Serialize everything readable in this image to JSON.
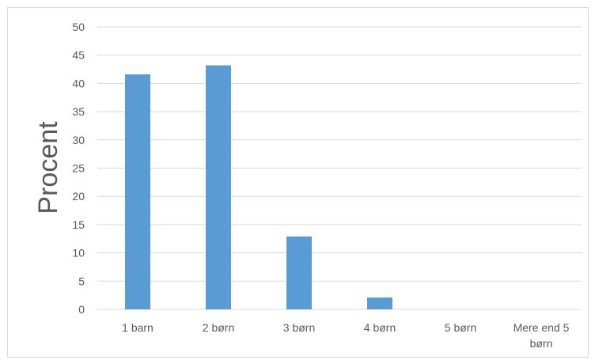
{
  "chart_data": {
    "type": "bar",
    "categories": [
      "1 barn",
      "2 børn",
      "3 børn",
      "4 børn",
      "5 børn",
      "Mere end 5 børn"
    ],
    "category_label_lines": [
      [
        "1 barn"
      ],
      [
        "2 børn"
      ],
      [
        "3 børn"
      ],
      [
        "4 børn"
      ],
      [
        "5 børn"
      ],
      [
        "Mere end 5",
        "børn"
      ]
    ],
    "values": [
      41.6,
      43.2,
      12.9,
      2.1,
      0,
      0
    ],
    "title": "",
    "xlabel": "",
    "ylabel": "Procent",
    "ylim": [
      0,
      50
    ],
    "yticks": [
      0,
      5,
      10,
      15,
      20,
      25,
      30,
      35,
      40,
      45,
      50
    ],
    "grid": true,
    "legend": "none",
    "bar_color": "#5b9bd5",
    "grid_color": "#d9d9d9"
  }
}
